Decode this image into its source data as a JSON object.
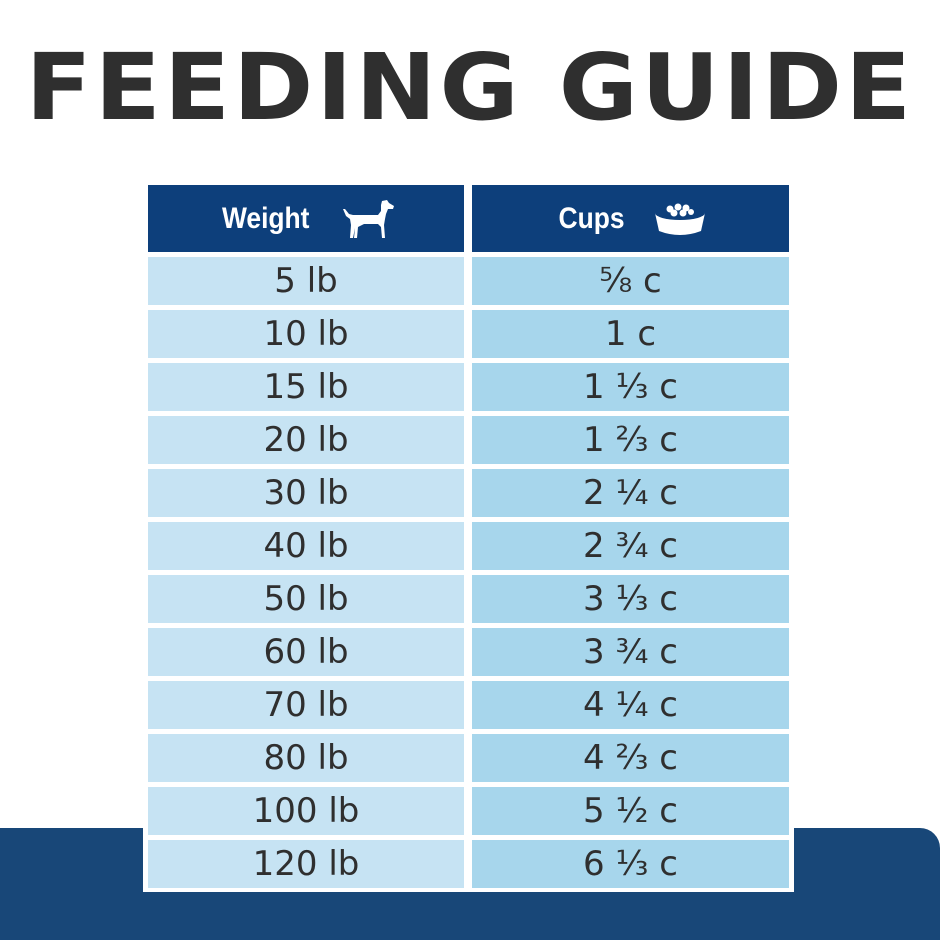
{
  "title": "FEEDING GUIDE",
  "colors": {
    "header": "#0d3f7b",
    "weight_cell": "#c6e3f3",
    "cups_cell": "#a7d6ec",
    "band": "#184778"
  },
  "table": {
    "headers": {
      "weight": "Weight",
      "cups": "Cups",
      "weight_icon": "dog-icon",
      "cups_icon": "food-bowl-icon"
    },
    "rows": [
      {
        "weight": "5 lb",
        "cups": "⅝ c"
      },
      {
        "weight": "10 lb",
        "cups": "1 c"
      },
      {
        "weight": "15 lb",
        "cups": "1 ⅓ c"
      },
      {
        "weight": "20 lb",
        "cups": "1 ⅔ c"
      },
      {
        "weight": "30 lb",
        "cups": "2 ¼ c"
      },
      {
        "weight": "40 lb",
        "cups": "2 ¾ c"
      },
      {
        "weight": "50 lb",
        "cups": "3 ⅓ c"
      },
      {
        "weight": "60 lb",
        "cups": "3 ¾ c"
      },
      {
        "weight": "70 lb",
        "cups": "4 ¼ c"
      },
      {
        "weight": "80 lb",
        "cups": "4 ⅔ c"
      },
      {
        "weight": "100 lb",
        "cups": "5 ½ c"
      },
      {
        "weight": "120 lb",
        "cups": "6 ⅓ c"
      }
    ]
  }
}
